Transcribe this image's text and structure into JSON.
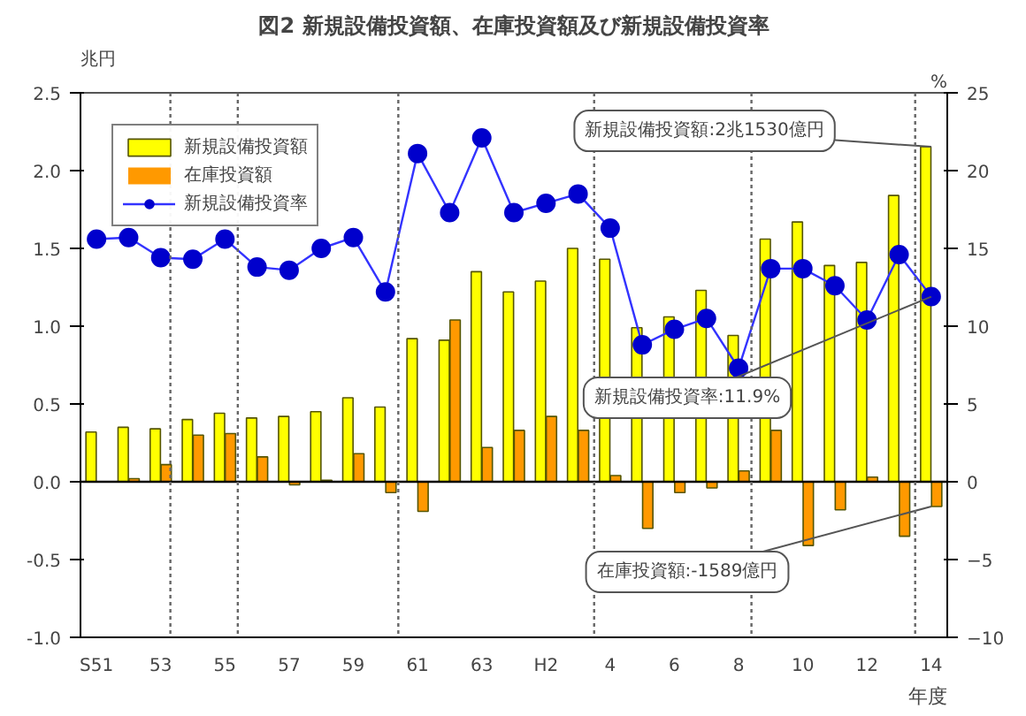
{
  "chart_data": {
    "type": "bar",
    "title": "図2 新規設備投資額、在庫投資額及び新規設備投資率",
    "xlabel": "年度",
    "ylabel": "兆円",
    "y2label": "%",
    "categories": [
      "S51",
      null,
      "53",
      null,
      "55",
      null,
      "57",
      null,
      "59",
      null,
      "61",
      null,
      "63",
      null,
      "H2",
      null,
      "4",
      null,
      "6",
      null,
      "8",
      null,
      "10",
      null,
      "12",
      null,
      "14"
    ],
    "ylim": [
      -1.0,
      2.5
    ],
    "yticks": [
      {
        "value": 2.5,
        "label": "2.5"
      },
      {
        "value": 2.0,
        "label": "2.0"
      },
      {
        "value": 1.5,
        "label": "1.5"
      },
      {
        "value": 1.0,
        "label": "1.0"
      },
      {
        "value": 0.5,
        "label": "0.5"
      },
      {
        "value": 0,
        "label": "0.0"
      },
      {
        "value": -0.5,
        "label": "-0.5"
      },
      {
        "value": -1.0,
        "label": "-1.0"
      }
    ],
    "y2lim": [
      -10,
      25
    ],
    "y2ticks": [
      25,
      20,
      15,
      10,
      5,
      0,
      -5,
      -10
    ],
    "series": [
      {
        "name": "新規設備投資額",
        "color": "#ffff00",
        "values": [
          0.32,
          0.35,
          0.34,
          0.4,
          0.44,
          0.41,
          0.42,
          0.45,
          0.54,
          0.48,
          0.92,
          0.91,
          1.35,
          1.22,
          1.29,
          1.5,
          1.43,
          0.99,
          1.06,
          1.23,
          0.94,
          1.56,
          1.67,
          1.39,
          1.41,
          1.84,
          2.153
        ]
      },
      {
        "name": "在庫投資額",
        "color": "#ff9900",
        "values": [
          0,
          0.02,
          0.11,
          0.3,
          0.31,
          0.16,
          -0.02,
          0.01,
          0.18,
          -0.07,
          -0.19,
          1.04,
          0.22,
          0.33,
          0.42,
          0.33,
          0.04,
          -0.3,
          -0.07,
          -0.04,
          0.07,
          0.33,
          -0.41,
          -0.18,
          0.03,
          -0.35,
          -0.1589
        ]
      },
      {
        "name": "新規設備投資率",
        "type": "line",
        "axis": "y2",
        "color": "#0000cc",
        "marker": "circle",
        "values": [
          15.6,
          15.7,
          14.4,
          14.3,
          15.6,
          13.8,
          13.6,
          15.0,
          15.7,
          12.2,
          21.1,
          17.3,
          22.1,
          17.3,
          17.9,
          18.5,
          16.3,
          8.8,
          9.8,
          10.5,
          7.3,
          13.7,
          13.7,
          12.6,
          10.4,
          14.6,
          11.9
        ]
      }
    ],
    "annotations": [
      {
        "text": "新規設備投資額:2兆1530億円",
        "x": "14",
        "y": 2.153
      },
      {
        "text": "新規設備投資率:11.9%",
        "x": "14"
      },
      {
        "text": "在庫投資額:-1589億円",
        "x": "14",
        "y": -0.1589
      }
    ],
    "legend": "top left",
    "grid": false
  }
}
